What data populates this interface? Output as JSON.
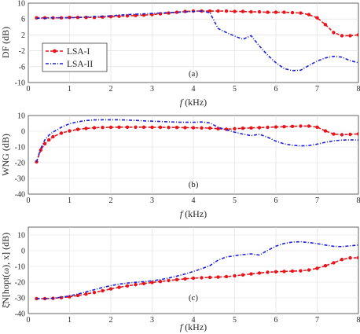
{
  "chart_data": [
    {
      "type": "line",
      "panel_label": "(a)",
      "xlabel_var": "f",
      "xlabel_unit": " (kHz)",
      "ylabel": "DF (dB)",
      "xlim": [
        0,
        8
      ],
      "ylim": [
        -10,
        10
      ],
      "xticks": [
        0,
        1,
        2,
        3,
        4,
        5,
        6,
        7,
        8
      ],
      "yticks": [
        -10,
        -6,
        -2,
        2,
        6,
        10
      ],
      "grid": true,
      "legend": {
        "position": "left-middle",
        "entries": [
          "LSA-I",
          "LSA-II"
        ]
      },
      "series": [
        {
          "name": "LSA-I",
          "color": "#e8141b",
          "x": [
            0.2,
            0.4,
            0.6,
            0.8,
            1.0,
            1.2,
            1.4,
            1.6,
            1.8,
            2.0,
            2.2,
            2.4,
            2.6,
            2.8,
            3.0,
            3.2,
            3.4,
            3.6,
            3.8,
            4.0,
            4.2,
            4.4,
            4.6,
            4.8,
            5.0,
            5.2,
            5.4,
            5.6,
            5.8,
            6.0,
            6.2,
            6.4,
            6.6,
            6.8,
            7.0,
            7.2,
            7.4,
            7.6,
            7.8,
            8.0
          ],
          "y": [
            6.3,
            6.3,
            6.3,
            6.3,
            6.4,
            6.4,
            6.4,
            6.4,
            6.5,
            6.6,
            6.7,
            6.8,
            6.9,
            7.0,
            7.1,
            7.3,
            7.5,
            7.7,
            7.9,
            8.0,
            8.0,
            8.0,
            8.0,
            8.0,
            7.9,
            7.9,
            7.8,
            7.8,
            7.7,
            7.7,
            7.7,
            7.6,
            7.5,
            7.1,
            6.3,
            4.6,
            2.6,
            1.8,
            1.8,
            2.0
          ]
        },
        {
          "name": "LSA-II",
          "color": "#1d1fd9",
          "x": [
            0.2,
            0.4,
            0.6,
            0.8,
            1.0,
            1.2,
            1.4,
            1.6,
            1.8,
            2.0,
            2.2,
            2.4,
            2.6,
            2.8,
            3.0,
            3.2,
            3.4,
            3.6,
            3.8,
            4.0,
            4.2,
            4.4,
            4.6,
            4.8,
            5.0,
            5.2,
            5.4,
            5.6,
            5.8,
            6.0,
            6.2,
            6.4,
            6.6,
            6.8,
            7.0,
            7.2,
            7.4,
            7.6,
            7.8,
            8.0
          ],
          "y": [
            6.2,
            6.2,
            6.3,
            6.3,
            6.3,
            6.4,
            6.5,
            6.6,
            6.7,
            6.8,
            7.0,
            7.1,
            7.2,
            7.3,
            7.4,
            7.5,
            7.6,
            7.7,
            7.8,
            7.9,
            8.0,
            7.6,
            3.6,
            2.6,
            1.7,
            0.9,
            1.8,
            -0.8,
            -3.1,
            -5.0,
            -6.5,
            -7.0,
            -6.9,
            -5.7,
            -4.6,
            -3.8,
            -3.4,
            -3.6,
            -4.5,
            -5.0
          ]
        }
      ]
    },
    {
      "type": "line",
      "panel_label": "(b)",
      "xlabel_var": "f",
      "xlabel_unit": " (kHz)",
      "ylabel": "WNG (dB)",
      "xlim": [
        0,
        8
      ],
      "ylim": [
        -40,
        10
      ],
      "xticks": [
        0,
        1,
        2,
        3,
        4,
        5,
        6,
        7,
        8
      ],
      "yticks": [
        -40,
        -30,
        -20,
        -10,
        0,
        10
      ],
      "grid": true,
      "series": [
        {
          "name": "LSA-I",
          "color": "#e8141b",
          "x": [
            0.2,
            0.3,
            0.4,
            0.5,
            0.6,
            0.8,
            1.0,
            1.2,
            1.4,
            1.6,
            1.8,
            2.0,
            2.2,
            2.4,
            2.6,
            2.8,
            3.0,
            3.2,
            3.4,
            3.6,
            3.8,
            4.0,
            4.2,
            4.4,
            4.6,
            4.8,
            5.0,
            5.2,
            5.4,
            5.6,
            5.8,
            6.0,
            6.2,
            6.4,
            6.6,
            6.8,
            7.0,
            7.2,
            7.4,
            7.6,
            7.8,
            8.0
          ],
          "y": [
            -19.5,
            -12.0,
            -8.0,
            -5.5,
            -3.5,
            -1.2,
            0.2,
            1.2,
            1.8,
            2.2,
            2.4,
            2.5,
            2.6,
            2.6,
            2.6,
            2.6,
            2.5,
            2.5,
            2.4,
            2.4,
            2.3,
            2.2,
            2.1,
            2.0,
            1.6,
            1.3,
            1.6,
            1.9,
            2.1,
            2.3,
            2.5,
            2.7,
            2.9,
            3.1,
            3.3,
            3.3,
            2.6,
            0.2,
            -1.8,
            -2.2,
            -2.0,
            -1.7
          ]
        },
        {
          "name": "LSA-II",
          "color": "#1d1fd9",
          "x": [
            0.2,
            0.3,
            0.4,
            0.5,
            0.6,
            0.8,
            1.0,
            1.2,
            1.4,
            1.6,
            1.8,
            2.0,
            2.2,
            2.4,
            2.6,
            2.8,
            3.0,
            3.2,
            3.4,
            3.6,
            3.8,
            4.0,
            4.2,
            4.4,
            4.6,
            4.8,
            5.0,
            5.2,
            5.4,
            5.6,
            5.8,
            6.0,
            6.2,
            6.4,
            6.6,
            6.8,
            7.0,
            7.2,
            7.4,
            7.6,
            7.8,
            8.0
          ],
          "y": [
            -19.5,
            -11.0,
            -5.5,
            -2.5,
            -0.5,
            2.5,
            4.8,
            6.0,
            6.8,
            7.2,
            7.3,
            7.3,
            7.3,
            7.1,
            6.9,
            6.6,
            6.4,
            6.2,
            6.0,
            5.8,
            5.7,
            5.7,
            5.9,
            5.3,
            2.5,
            0.9,
            -0.6,
            -1.8,
            -2.8,
            -1.9,
            -3.8,
            -6.3,
            -8.0,
            -8.9,
            -9.3,
            -9.1,
            -8.2,
            -7.0,
            -6.1,
            -5.6,
            -5.5,
            -5.6
          ]
        }
      ]
    },
    {
      "type": "line",
      "panel_label": "(c)",
      "xlabel_var": "f",
      "xlabel_unit": " (kHz)",
      "ylabel": "ξ̄N[hopt(ω), x] (dB)",
      "xlim": [
        0,
        8
      ],
      "ylim": [
        -40,
        15
      ],
      "xticks": [
        0,
        1,
        2,
        3,
        4,
        5,
        6,
        7,
        8
      ],
      "yticks": [
        -40,
        -30,
        -20,
        -10,
        0,
        10
      ],
      "grid": true,
      "series": [
        {
          "name": "LSA-I",
          "color": "#e8141b",
          "x": [
            0.2,
            0.4,
            0.6,
            0.8,
            1.0,
            1.2,
            1.4,
            1.6,
            1.8,
            2.0,
            2.2,
            2.4,
            2.6,
            2.8,
            3.0,
            3.2,
            3.4,
            3.6,
            3.8,
            4.0,
            4.2,
            4.4,
            4.6,
            4.8,
            5.0,
            5.2,
            5.4,
            5.6,
            5.8,
            6.0,
            6.2,
            6.4,
            6.6,
            6.8,
            7.0,
            7.2,
            7.4,
            7.6,
            7.8,
            8.0
          ],
          "y": [
            -30.5,
            -30.5,
            -30.3,
            -29.9,
            -29.3,
            -28.5,
            -27.6,
            -26.6,
            -25.5,
            -24.3,
            -23.3,
            -22.4,
            -21.6,
            -20.9,
            -20.2,
            -19.6,
            -19.0,
            -18.4,
            -17.9,
            -17.5,
            -17.2,
            -17.0,
            -16.8,
            -16.5,
            -16.0,
            -15.4,
            -14.8,
            -14.2,
            -13.7,
            -13.4,
            -13.2,
            -13.0,
            -12.8,
            -12.3,
            -11.2,
            -9.6,
            -7.7,
            -5.6,
            -4.6,
            -4.5
          ]
        },
        {
          "name": "LSA-II",
          "color": "#1d1fd9",
          "x": [
            0.2,
            0.4,
            0.6,
            0.8,
            1.0,
            1.2,
            1.4,
            1.6,
            1.8,
            2.0,
            2.2,
            2.4,
            2.6,
            2.8,
            3.0,
            3.2,
            3.4,
            3.6,
            3.8,
            4.0,
            4.2,
            4.4,
            4.6,
            4.8,
            5.0,
            5.2,
            5.4,
            5.6,
            5.8,
            6.0,
            6.2,
            6.4,
            6.6,
            6.8,
            7.0,
            7.2,
            7.4,
            7.6,
            7.8,
            8.0
          ],
          "y": [
            -30.5,
            -30.5,
            -30.2,
            -29.6,
            -28.8,
            -27.6,
            -26.2,
            -24.8,
            -23.4,
            -22.2,
            -21.3,
            -20.6,
            -20.1,
            -19.7,
            -19.2,
            -18.4,
            -17.4,
            -16.2,
            -14.8,
            -13.2,
            -11.5,
            -9.5,
            -6.0,
            -4.0,
            -3.2,
            -2.5,
            -2.0,
            -2.8,
            0.2,
            2.9,
            4.6,
            5.5,
            5.7,
            5.2,
            4.5,
            3.6,
            2.8,
            2.6,
            3.1,
            3.6
          ]
        }
      ]
    }
  ]
}
